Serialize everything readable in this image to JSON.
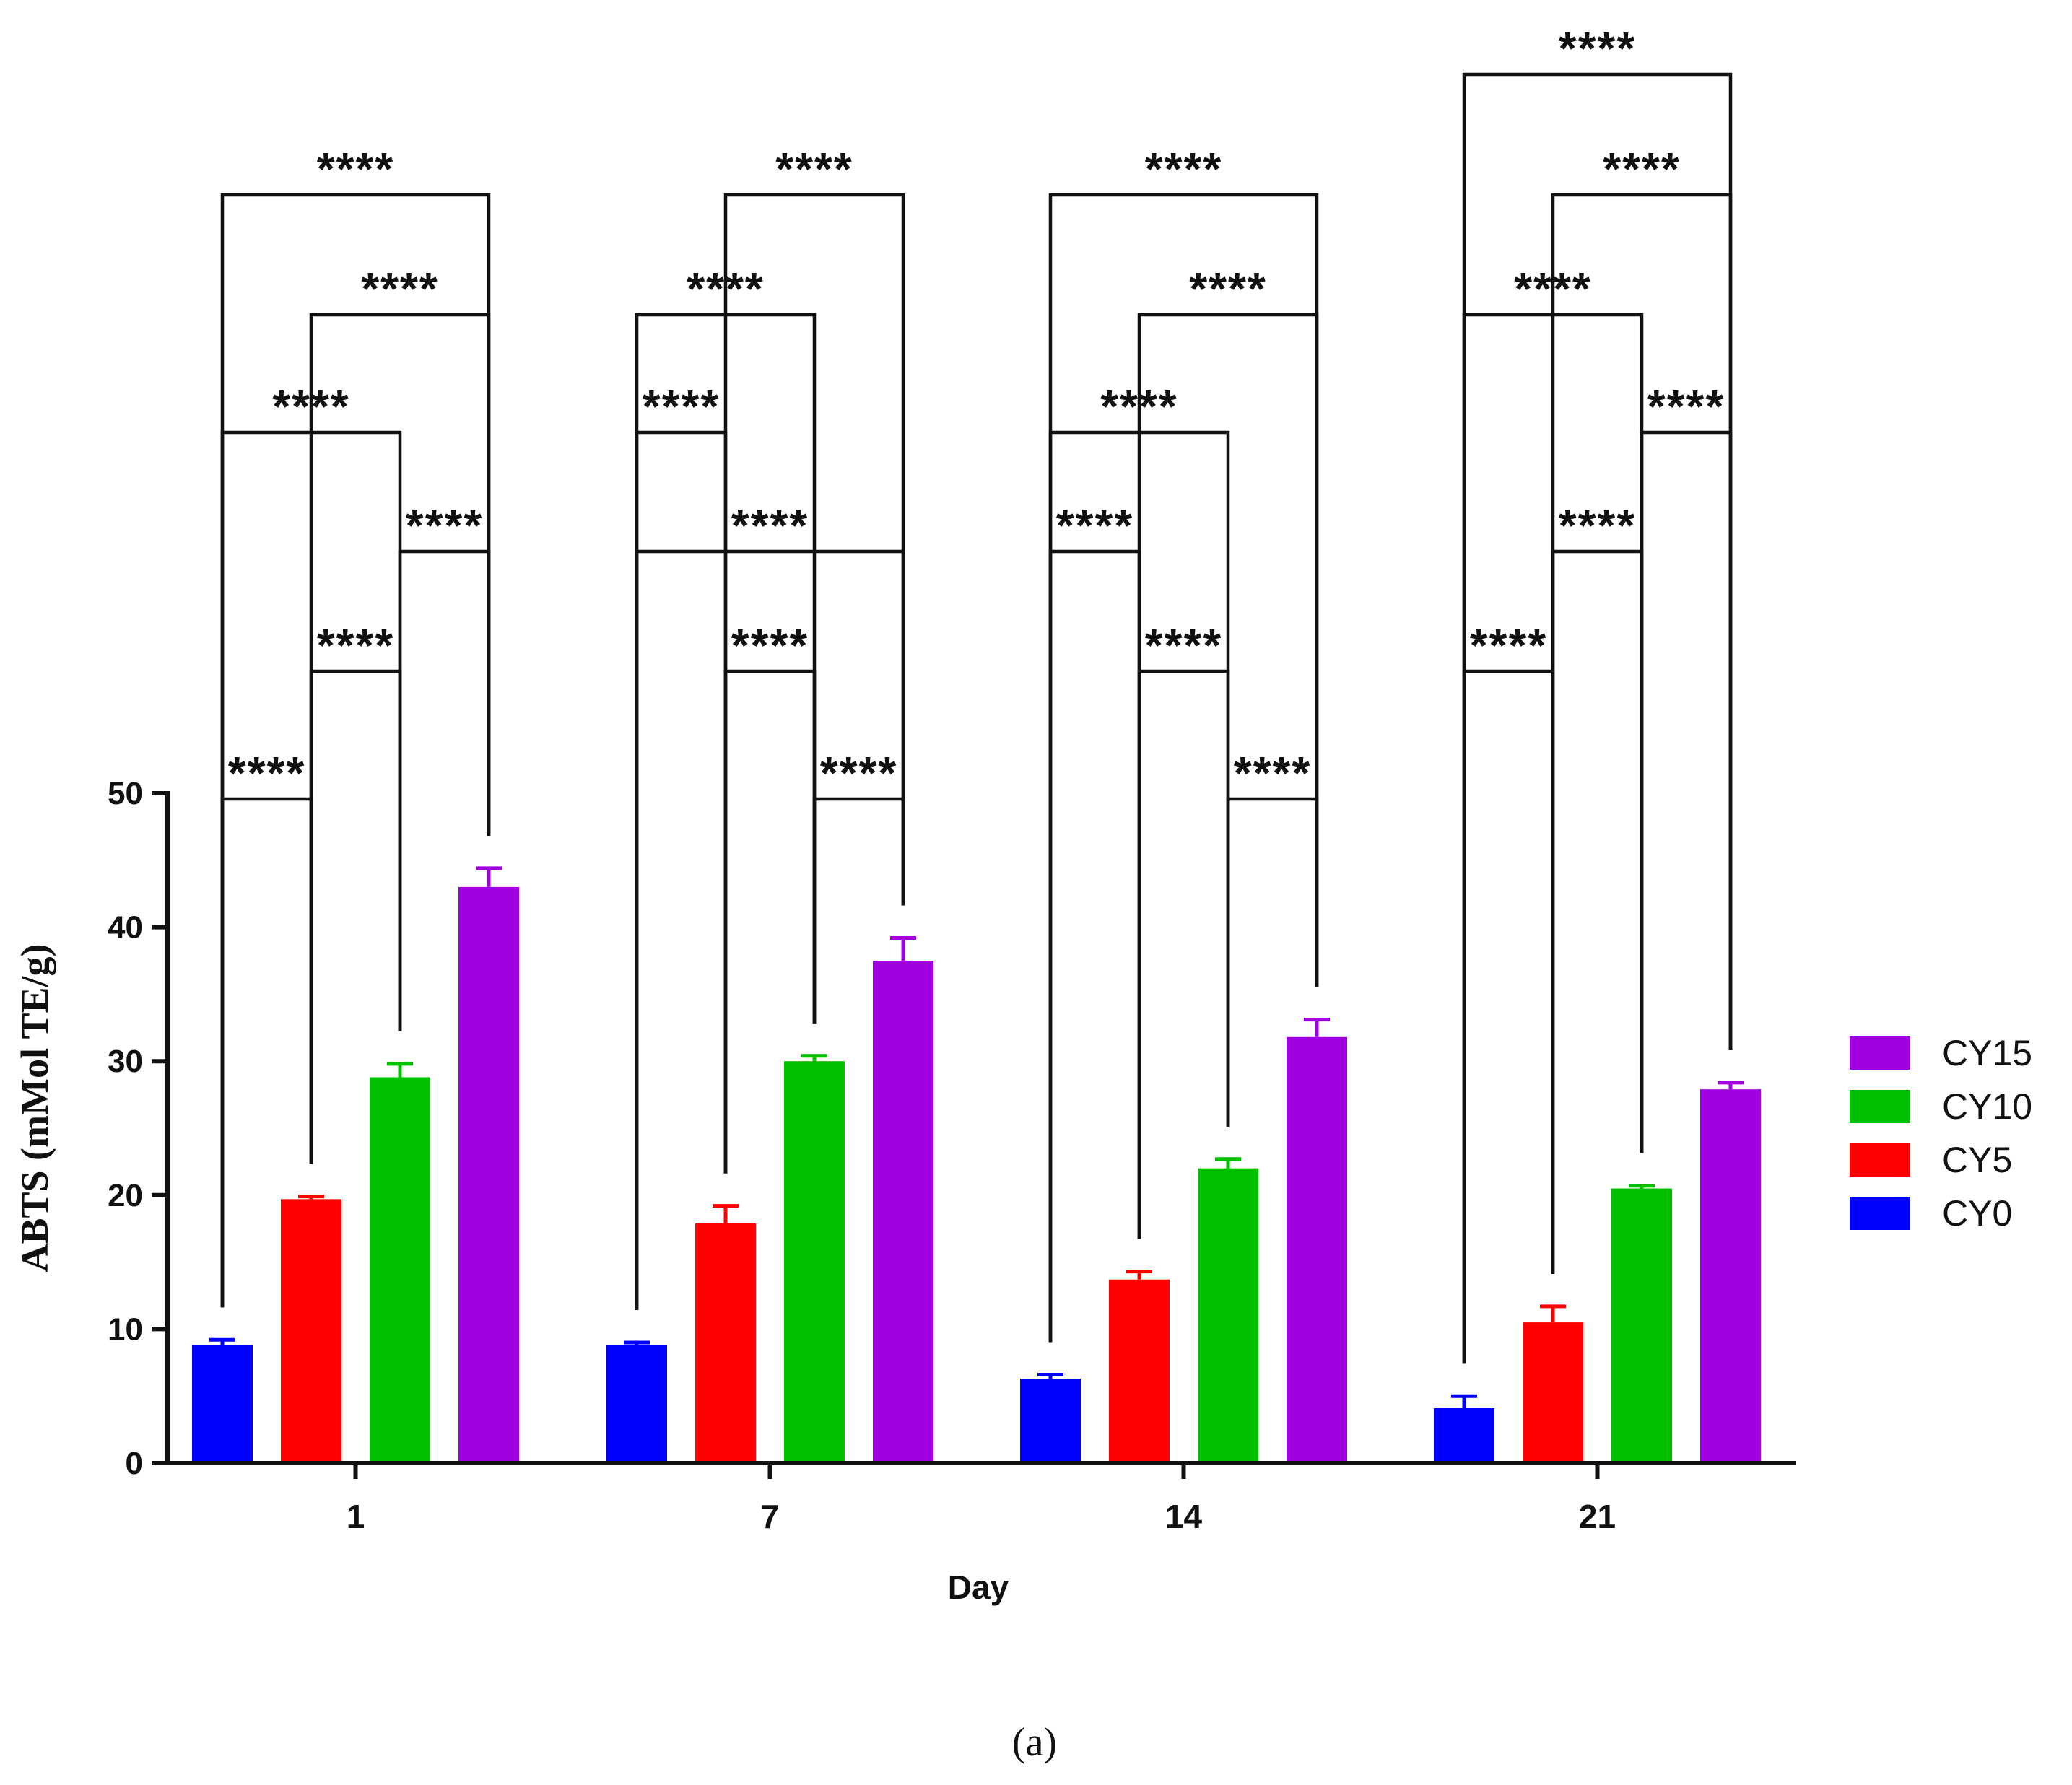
{
  "chart_data": {
    "type": "bar",
    "title": "",
    "xlabel": "Day",
    "ylabel": "ABTS (mMol TE/g)",
    "ylim": [
      0,
      50
    ],
    "yticks": [
      0,
      10,
      20,
      30,
      40,
      50
    ],
    "categories": [
      "1",
      "7",
      "14",
      "21"
    ],
    "series": [
      {
        "name": "CY0",
        "color": "#0000ff",
        "values": [
          8.8,
          8.8,
          6.3,
          4.1
        ],
        "errors": [
          0.4,
          0.2,
          0.3,
          0.9
        ]
      },
      {
        "name": "CY5",
        "color": "#ff0000",
        "values": [
          19.7,
          17.9,
          13.7,
          10.5
        ],
        "errors": [
          0.2,
          1.3,
          0.6,
          1.2
        ]
      },
      {
        "name": "CY10",
        "color": "#00c000",
        "values": [
          28.8,
          30.0,
          22.0,
          20.5
        ],
        "errors": [
          1.0,
          0.4,
          0.7,
          0.2
        ]
      },
      {
        "name": "CY15",
        "color": "#a000e0",
        "values": [
          43.0,
          37.5,
          31.8,
          27.9
        ],
        "errors": [
          1.4,
          1.7,
          1.3,
          0.5
        ]
      }
    ],
    "legend": {
      "placement": "right",
      "order": [
        "CY15",
        "CY10",
        "CY5",
        "CY0"
      ]
    },
    "significance_label": "****",
    "comparisons": [
      {
        "category": "1",
        "pairs": [
          [
            "CY0",
            "CY5"
          ],
          [
            "CY5",
            "CY10"
          ],
          [
            "CY10",
            "CY15"
          ],
          [
            "CY0",
            "CY10"
          ],
          [
            "CY5",
            "CY15"
          ],
          [
            "CY0",
            "CY15"
          ]
        ]
      },
      {
        "category": "7",
        "pairs": [
          [
            "CY10",
            "CY15"
          ],
          [
            "CY5",
            "CY10"
          ],
          [
            "CY0",
            "CY15"
          ],
          [
            "CY0",
            "CY5"
          ],
          [
            "CY0",
            "CY10"
          ],
          [
            "CY5",
            "CY15"
          ]
        ]
      },
      {
        "category": "14",
        "pairs": [
          [
            "CY10",
            "CY15"
          ],
          [
            "CY5",
            "CY10"
          ],
          [
            "CY0",
            "CY5"
          ],
          [
            "CY0",
            "CY10"
          ],
          [
            "CY5",
            "CY15"
          ],
          [
            "CY0",
            "CY15"
          ]
        ]
      },
      {
        "category": "21",
        "pairs": [
          [
            "CY0",
            "CY5"
          ],
          [
            "CY5",
            "CY10"
          ],
          [
            "CY10",
            "CY15"
          ],
          [
            "CY0",
            "CY10"
          ],
          [
            "CY5",
            "CY15"
          ],
          [
            "CY0",
            "CY15"
          ]
        ]
      }
    ]
  },
  "caption": "(a)"
}
